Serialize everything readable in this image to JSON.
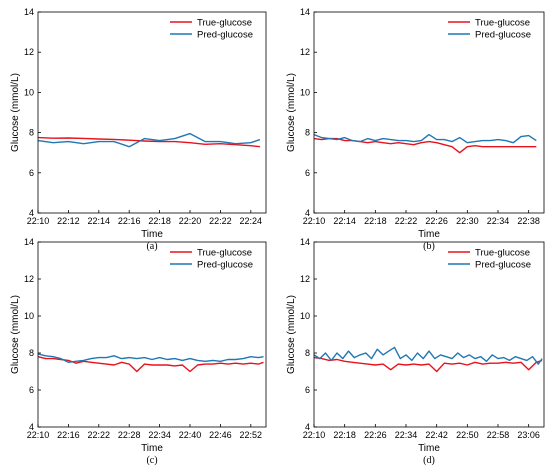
{
  "colors": {
    "true": "#e8121d",
    "pred": "#1f77b4"
  },
  "chart_data": [
    {
      "type": "line",
      "caption": "(a)",
      "xlabel": "Time",
      "ylabel": "Glucose (mmol/L)",
      "ylim": [
        4,
        14
      ],
      "yticks": [
        4,
        6,
        8,
        10,
        12,
        14
      ],
      "legend": "top-right",
      "xlim": [
        0,
        15
      ],
      "xticks": [
        {
          "v": 0,
          "label": "22:10"
        },
        {
          "v": 2,
          "label": "22:12"
        },
        {
          "v": 4,
          "label": "22:14"
        },
        {
          "v": 6,
          "label": "22:16"
        },
        {
          "v": 8,
          "label": "22:18"
        },
        {
          "v": 10,
          "label": "22:20"
        },
        {
          "v": 12,
          "label": "22:22"
        },
        {
          "v": 14,
          "label": "22:24"
        }
      ],
      "series": [
        {
          "name": "True-glucose",
          "x": [
            0,
            1,
            2,
            3,
            4,
            5,
            6,
            7,
            8,
            9,
            10,
            11,
            12,
            13,
            14,
            14.6
          ],
          "y": [
            7.75,
            7.72,
            7.73,
            7.71,
            7.68,
            7.66,
            7.62,
            7.58,
            7.55,
            7.55,
            7.5,
            7.42,
            7.45,
            7.4,
            7.35,
            7.3
          ]
        },
        {
          "name": "Pred-glucose",
          "x": [
            0,
            1,
            2,
            3,
            4,
            5,
            6,
            7,
            8,
            9,
            10,
            11,
            12,
            13,
            14,
            14.6
          ],
          "y": [
            7.6,
            7.5,
            7.55,
            7.45,
            7.55,
            7.55,
            7.3,
            7.7,
            7.6,
            7.7,
            7.95,
            7.55,
            7.55,
            7.45,
            7.5,
            7.65
          ]
        }
      ]
    },
    {
      "type": "line",
      "caption": "(b)",
      "xlabel": "Time",
      "ylabel": "Glucose (mmol/L)",
      "ylim": [
        4,
        14
      ],
      "yticks": [
        4,
        6,
        8,
        10,
        12,
        14
      ],
      "legend": "top-right",
      "xlim": [
        0,
        30
      ],
      "xticks": [
        {
          "v": 0,
          "label": "22:10"
        },
        {
          "v": 4,
          "label": "22:14"
        },
        {
          "v": 8,
          "label": "22:18"
        },
        {
          "v": 12,
          "label": "22:22"
        },
        {
          "v": 16,
          "label": "22:26"
        },
        {
          "v": 20,
          "label": "22:30"
        },
        {
          "v": 24,
          "label": "22:34"
        },
        {
          "v": 28,
          "label": "22:38"
        }
      ],
      "series": [
        {
          "name": "True-glucose",
          "x": [
            0,
            1,
            2,
            3,
            4,
            5,
            6,
            7,
            8,
            9,
            10,
            11,
            12,
            13,
            14,
            15,
            16,
            17,
            18,
            19,
            20,
            21,
            22,
            23,
            24,
            25,
            26,
            27,
            28,
            29
          ],
          "y": [
            7.7,
            7.65,
            7.7,
            7.7,
            7.6,
            7.6,
            7.55,
            7.5,
            7.55,
            7.5,
            7.45,
            7.5,
            7.45,
            7.4,
            7.5,
            7.55,
            7.5,
            7.4,
            7.3,
            7.0,
            7.3,
            7.35,
            7.3,
            7.3,
            7.3,
            7.3,
            7.3,
            7.3,
            7.3,
            7.3
          ]
        },
        {
          "name": "Pred-glucose",
          "x": [
            0,
            1,
            2,
            3,
            4,
            5,
            6,
            7,
            8,
            9,
            10,
            11,
            12,
            13,
            14,
            15,
            16,
            17,
            18,
            19,
            20,
            21,
            22,
            23,
            24,
            25,
            26,
            27,
            28,
            29
          ],
          "y": [
            7.9,
            7.75,
            7.7,
            7.65,
            7.75,
            7.6,
            7.55,
            7.7,
            7.6,
            7.7,
            7.65,
            7.6,
            7.6,
            7.55,
            7.6,
            7.9,
            7.65,
            7.65,
            7.55,
            7.75,
            7.5,
            7.55,
            7.6,
            7.6,
            7.65,
            7.6,
            7.5,
            7.8,
            7.85,
            7.6
          ]
        }
      ]
    },
    {
      "type": "line",
      "caption": "(c)",
      "xlabel": "Time",
      "ylabel": "Glucose (mmol/L)",
      "ylim": [
        4,
        14
      ],
      "yticks": [
        4,
        6,
        8,
        10,
        12,
        14
      ],
      "legend": "top-right",
      "xlim": [
        0,
        45
      ],
      "xticks": [
        {
          "v": 0,
          "label": "22:10"
        },
        {
          "v": 6,
          "label": "22:16"
        },
        {
          "v": 12,
          "label": "22:22"
        },
        {
          "v": 18,
          "label": "22:28"
        },
        {
          "v": 24,
          "label": "22:34"
        },
        {
          "v": 30,
          "label": "22:40"
        },
        {
          "v": 36,
          "label": "22:46"
        },
        {
          "v": 42,
          "label": "22:52"
        }
      ],
      "series": [
        {
          "name": "True-glucose",
          "x": [
            0,
            1.5,
            3,
            4.5,
            6,
            7.5,
            9,
            10.5,
            12,
            13.5,
            15,
            16.5,
            18,
            19.5,
            21,
            22.5,
            24,
            25.5,
            27,
            28.5,
            30,
            31.5,
            33,
            34.5,
            36,
            37.5,
            39,
            40.5,
            42,
            43.5,
            44.5
          ],
          "y": [
            7.8,
            7.7,
            7.7,
            7.65,
            7.6,
            7.45,
            7.55,
            7.5,
            7.45,
            7.4,
            7.35,
            7.5,
            7.4,
            7.0,
            7.4,
            7.35,
            7.35,
            7.35,
            7.3,
            7.35,
            7.0,
            7.35,
            7.4,
            7.4,
            7.45,
            7.4,
            7.45,
            7.4,
            7.45,
            7.4,
            7.5
          ]
        },
        {
          "name": "Pred-glucose",
          "x": [
            0,
            1.5,
            3,
            4.5,
            6,
            7.5,
            9,
            10.5,
            12,
            13.5,
            15,
            16.5,
            18,
            19.5,
            21,
            22.5,
            24,
            25.5,
            27,
            28.5,
            30,
            31.5,
            33,
            34.5,
            36,
            37.5,
            39,
            40.5,
            42,
            43.5,
            44.5
          ],
          "y": [
            7.95,
            7.85,
            7.8,
            7.7,
            7.5,
            7.55,
            7.6,
            7.7,
            7.75,
            7.75,
            7.85,
            7.7,
            7.75,
            7.7,
            7.75,
            7.65,
            7.75,
            7.65,
            7.7,
            7.6,
            7.7,
            7.6,
            7.55,
            7.6,
            7.55,
            7.65,
            7.65,
            7.7,
            7.8,
            7.75,
            7.8
          ]
        }
      ]
    },
    {
      "type": "line",
      "caption": "(d)",
      "xlabel": "Time",
      "ylabel": "Glucose (mmol/L)",
      "ylim": [
        4,
        14
      ],
      "yticks": [
        4,
        6,
        8,
        10,
        12,
        14
      ],
      "legend": "top-right",
      "xlim": [
        0,
        60
      ],
      "xticks": [
        {
          "v": 0,
          "label": "22:10"
        },
        {
          "v": 8,
          "label": "22:18"
        },
        {
          "v": 16,
          "label": "22:26"
        },
        {
          "v": 24,
          "label": "22:34"
        },
        {
          "v": 32,
          "label": "22:42"
        },
        {
          "v": 40,
          "label": "22:50"
        },
        {
          "v": 48,
          "label": "22:58"
        },
        {
          "v": 56,
          "label": "23:06"
        }
      ],
      "series": [
        {
          "name": "True-glucose",
          "x": [
            0,
            2,
            4,
            6,
            8,
            10,
            12,
            14,
            16,
            18,
            20,
            22,
            24,
            26,
            28,
            30,
            32,
            34,
            36,
            38,
            40,
            42,
            44,
            46,
            48,
            50,
            52,
            54,
            56,
            58,
            59.5
          ],
          "y": [
            7.75,
            7.7,
            7.6,
            7.65,
            7.55,
            7.5,
            7.45,
            7.4,
            7.35,
            7.4,
            7.1,
            7.4,
            7.35,
            7.4,
            7.35,
            7.4,
            7.0,
            7.45,
            7.4,
            7.45,
            7.35,
            7.5,
            7.4,
            7.45,
            7.45,
            7.5,
            7.45,
            7.5,
            7.1,
            7.5,
            7.6
          ]
        },
        {
          "name": "Pred-glucose",
          "x": [
            0,
            1.5,
            3,
            4.5,
            6,
            7.5,
            9,
            10.5,
            12,
            13.5,
            15,
            16.5,
            18,
            19.5,
            21,
            22.5,
            24,
            25.5,
            27,
            28.5,
            30,
            31.5,
            33,
            34.5,
            36,
            37.5,
            39,
            40.5,
            42,
            43.5,
            45,
            46.5,
            48,
            49.5,
            51,
            52.5,
            54,
            55.5,
            57,
            58.5,
            59.5
          ],
          "y": [
            7.9,
            7.7,
            8.0,
            7.6,
            8.0,
            7.7,
            8.1,
            7.75,
            7.9,
            8.0,
            7.7,
            8.2,
            7.9,
            8.1,
            8.3,
            7.7,
            7.9,
            7.6,
            8.0,
            7.7,
            8.1,
            7.7,
            7.9,
            7.8,
            7.7,
            8.0,
            7.75,
            7.9,
            7.7,
            7.8,
            7.55,
            7.9,
            7.7,
            7.75,
            7.6,
            7.8,
            7.7,
            7.6,
            7.8,
            7.4,
            7.7
          ]
        }
      ]
    }
  ]
}
